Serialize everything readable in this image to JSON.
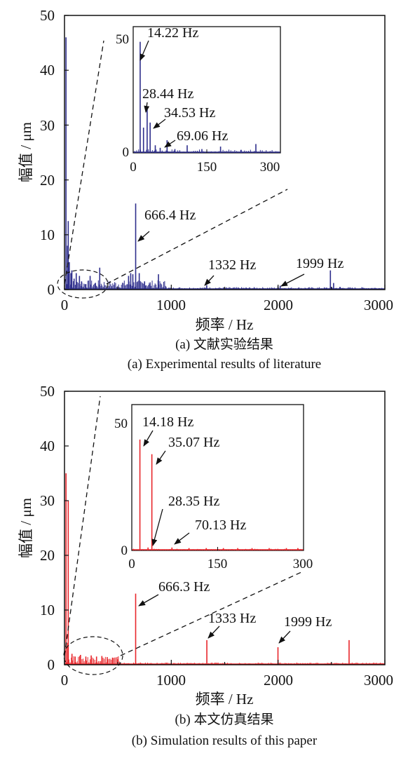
{
  "chart_data": [
    {
      "type": "line",
      "subplot": "a",
      "caption_cn": "(a) 文献实验结果",
      "caption_en": "(a) Experimental results of literature",
      "xlabel": "频率 / Hz",
      "ylabel": "幅值 / μm",
      "xlim": [
        0,
        3000
      ],
      "ylim": [
        0,
        50
      ],
      "xticks": [
        "0",
        "1000",
        "2000",
        "3000"
      ],
      "yticks": [
        "0",
        "10",
        "20",
        "30",
        "40",
        "50"
      ],
      "color": "#2e2e8c",
      "grid": false,
      "series": [
        {
          "peaks": [
            {
              "x": 14,
              "y": 46
            },
            {
              "x": 28,
              "y": 8
            },
            {
              "x": 35,
              "y": 12.5
            },
            {
              "x": 45,
              "y": 5
            },
            {
              "x": 60,
              "y": 3
            },
            {
              "x": 69,
              "y": 3.5
            },
            {
              "x": 90,
              "y": 2
            },
            {
              "x": 110,
              "y": 3
            },
            {
              "x": 140,
              "y": 2.5
            },
            {
              "x": 160,
              "y": 1.5
            },
            {
              "x": 200,
              "y": 1
            },
            {
              "x": 240,
              "y": 2.5
            },
            {
              "x": 290,
              "y": 1.2
            },
            {
              "x": 330,
              "y": 4
            },
            {
              "x": 600,
              "y": 2.5
            },
            {
              "x": 620,
              "y": 3
            },
            {
              "x": 640,
              "y": 2.8
            },
            {
              "x": 666.4,
              "y": 15.7
            },
            {
              "x": 700,
              "y": 3
            },
            {
              "x": 750,
              "y": 1.5
            },
            {
              "x": 800,
              "y": 1
            },
            {
              "x": 880,
              "y": 2.8
            },
            {
              "x": 950,
              "y": 0.5
            },
            {
              "x": 1332,
              "y": 0.8
            },
            {
              "x": 1999,
              "y": 0.6
            },
            {
              "x": 2020,
              "y": 0.7
            },
            {
              "x": 2490,
              "y": 3.5
            },
            {
              "x": 2520,
              "y": 1.2
            },
            {
              "x": 2580,
              "y": 0.5
            }
          ]
        }
      ],
      "annotations": [
        {
          "text": "666.4 Hz",
          "x": 666.4,
          "y": 15.7
        },
        {
          "text": "1332 Hz",
          "x": 1332,
          "y": 0.8
        },
        {
          "text": "1999 Hz",
          "x": 1999,
          "y": 0.6
        }
      ],
      "inset": {
        "xlim": [
          0,
          300
        ],
        "ylim": [
          0,
          50
        ],
        "xticks": [
          "0",
          "150",
          "300"
        ],
        "yticks": [
          "0",
          "50"
        ],
        "peaks": [
          {
            "x": 14.22,
            "y": 44
          },
          {
            "x": 21,
            "y": 10
          },
          {
            "x": 28.44,
            "y": 18
          },
          {
            "x": 34.53,
            "y": 12
          },
          {
            "x": 45,
            "y": 3
          },
          {
            "x": 55,
            "y": 2
          },
          {
            "x": 69.06,
            "y": 5
          },
          {
            "x": 85,
            "y": 1.5
          },
          {
            "x": 110,
            "y": 3
          },
          {
            "x": 140,
            "y": 1.5
          },
          {
            "x": 178,
            "y": 2.5
          },
          {
            "x": 220,
            "y": 1.2
          },
          {
            "x": 250,
            "y": 3.5
          }
        ],
        "annotations": [
          {
            "text": "14.22 Hz",
            "x": 14.22,
            "y": 44
          },
          {
            "text": "28.44 Hz",
            "x": 28.44,
            "y": 18
          },
          {
            "text": "34.53 Hz",
            "x": 34.53,
            "y": 12
          },
          {
            "text": "69.06 Hz",
            "x": 69.06,
            "y": 5
          }
        ]
      }
    },
    {
      "type": "line",
      "subplot": "b",
      "caption_cn": "(b) 本文仿真结果",
      "caption_en": "(b) Simulation results of this paper",
      "xlabel": "频率 / Hz",
      "ylabel": "幅值 / μm",
      "xlim": [
        0,
        3000
      ],
      "ylim": [
        0,
        50
      ],
      "xticks": [
        "0",
        "1000",
        "2000",
        "3000"
      ],
      "yticks": [
        "0",
        "10",
        "20",
        "30",
        "40",
        "50"
      ],
      "color": "#e8262b",
      "grid": false,
      "series": [
        {
          "peaks": [
            {
              "x": 14.18,
              "y": 35
            },
            {
              "x": 28.35,
              "y": 4
            },
            {
              "x": 35.07,
              "y": 30
            },
            {
              "x": 70.13,
              "y": 2
            },
            {
              "x": 100,
              "y": 1.5
            },
            {
              "x": 150,
              "y": 1.8
            },
            {
              "x": 200,
              "y": 1.5
            },
            {
              "x": 250,
              "y": 1.7
            },
            {
              "x": 300,
              "y": 1.5
            },
            {
              "x": 350,
              "y": 1.6
            },
            {
              "x": 400,
              "y": 1.4
            },
            {
              "x": 450,
              "y": 1.3
            },
            {
              "x": 500,
              "y": 1
            },
            {
              "x": 666.3,
              "y": 13
            },
            {
              "x": 1333,
              "y": 4.5
            },
            {
              "x": 1999,
              "y": 3.2
            },
            {
              "x": 2665,
              "y": 4.5
            }
          ]
        }
      ],
      "annotations": [
        {
          "text": "666.3 Hz",
          "x": 666.3,
          "y": 13
        },
        {
          "text": "1333 Hz",
          "x": 1333,
          "y": 4.5
        },
        {
          "text": "1999 Hz",
          "x": 1999,
          "y": 3.2
        }
      ],
      "inset": {
        "xlim": [
          0,
          300
        ],
        "ylim": [
          0,
          50
        ],
        "xticks": [
          "0",
          "150",
          "300"
        ],
        "yticks": [
          "0",
          "50"
        ],
        "peaks": [
          {
            "x": 14.18,
            "y": 38
          },
          {
            "x": 35.07,
            "y": 33
          },
          {
            "x": 28.35,
            "y": 1
          },
          {
            "x": 70.13,
            "y": 1
          },
          {
            "x": 100,
            "y": 0.8
          },
          {
            "x": 130,
            "y": 0.8
          },
          {
            "x": 160,
            "y": 0.8
          },
          {
            "x": 185,
            "y": 0.8
          },
          {
            "x": 210,
            "y": 0.8
          },
          {
            "x": 240,
            "y": 0.8
          },
          {
            "x": 270,
            "y": 0.8
          },
          {
            "x": 290,
            "y": 0.8
          }
        ],
        "annotations": [
          {
            "text": "14.18 Hz",
            "x": 14.18,
            "y": 38
          },
          {
            "text": "35.07 Hz",
            "x": 35.07,
            "y": 33
          },
          {
            "text": "28.35 Hz",
            "x": 28.35,
            "y": 1
          },
          {
            "text": "70.13 Hz",
            "x": 70.13,
            "y": 1
          }
        ]
      }
    }
  ]
}
